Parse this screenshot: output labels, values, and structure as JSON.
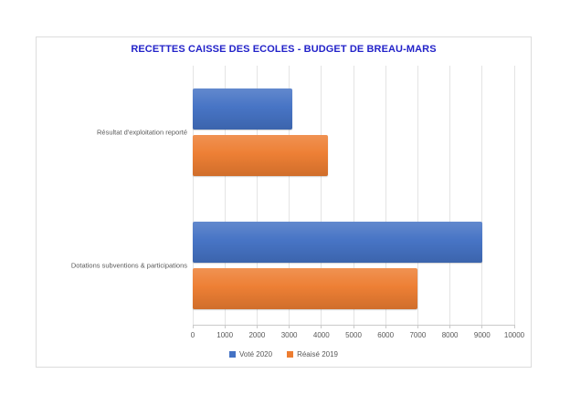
{
  "chart_data": {
    "type": "bar",
    "orientation": "horizontal",
    "title": "RECETTES CAISSE DES ECOLES - BUDGET DE BREAU-MARS",
    "categories": [
      "Résultat d'exploitation reporté",
      "Dotations subventions & participations"
    ],
    "series": [
      {
        "name": "Voté 2020",
        "color": "#4472C4",
        "values": [
          3100,
          9000
        ]
      },
      {
        "name": "Réaisé 2019",
        "color": "#ED7D31",
        "values": [
          4200,
          7000
        ]
      }
    ],
    "xlim": [
      0,
      10000
    ],
    "x_ticks": [
      0,
      1000,
      2000,
      3000,
      4000,
      5000,
      6000,
      7000,
      8000,
      9000,
      10000
    ],
    "xlabel": "",
    "ylabel": "",
    "grid": true,
    "legend_position": "bottom"
  },
  "colors": {
    "title_text": "#2323C9",
    "axis_text": "#595959",
    "gridline": "#E4E4E4",
    "axis_line": "#C9C9C9",
    "frame_border": "#DCDCDC",
    "series_vote_2020": "#4472C4",
    "series_realise_2019": "#ED7D31"
  }
}
